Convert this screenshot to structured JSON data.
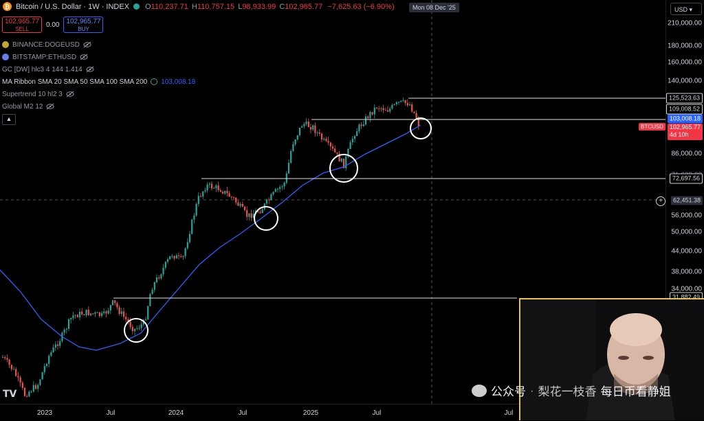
{
  "header": {
    "symbol_icon": "bitcoin-coin-icon",
    "title": "Bitcoin / U.S. Dollar · 1W · INDEX",
    "ohlc": [
      {
        "key": "O",
        "value": "110,237.71"
      },
      {
        "key": "H",
        "value": "110,757.15"
      },
      {
        "key": "L",
        "value": "98,933.99"
      },
      {
        "key": "C",
        "value": "102,965.77"
      }
    ],
    "change": "−7,625.63 (−6.90%)"
  },
  "trade": {
    "sell_price": "102,965.77",
    "sell_label": "SELL",
    "spread": "0.00",
    "buy_price": "102,965.77",
    "buy_label": "BUY"
  },
  "indicators": [
    {
      "label": "BINANCE:DOGEUSD",
      "icon": "dogecoin-icon",
      "value": ""
    },
    {
      "label": "BITSTAMP:ETHUSD",
      "icon": "ethereum-icon",
      "value": ""
    },
    {
      "label": "GC [DW] hlc3 4 144 1.414",
      "icon": "",
      "value": ""
    },
    {
      "label": "MA Ribbon SMA 20 SMA 50 SMA 100 SMA 200",
      "icon": "",
      "value": "103,008.18"
    },
    {
      "label": "Supertrend 10 hl2 3",
      "icon": "",
      "value": ""
    },
    {
      "label": "Global M2 12",
      "icon": "",
      "value": ""
    }
  ],
  "currency": "USD",
  "price_axis": [
    "210,000.00",
    "180,000.00",
    "160,000.00",
    "140,000.00",
    "86,000.00",
    "56,000.00",
    "50,000.00",
    "44,000.00",
    "38,000.00",
    "34,000.00"
  ],
  "price_tags": {
    "level_1": "125,523.63",
    "level_2": "109,008.52",
    "ma_value": "103,008.18",
    "current": "102,965.77",
    "countdown": "4d 10h",
    "level_3": "72,697.56",
    "crosshair": "62,451.38",
    "level_4": "31,882.49",
    "partial_upper": "71,693.00"
  },
  "symbol_tag": "BTCUSD",
  "time_axis": [
    "2023",
    "Jul",
    "2024",
    "Jul",
    "2025",
    "Jul",
    "Jul"
  ],
  "cursor_date": "Mon 08 Dec '25",
  "watermark": {
    "platform": "公众号",
    "sep": "·",
    "author": "梨花一枝香",
    "channel": "每日币看静姐"
  },
  "colors": {
    "bull": "#26a69a",
    "bear": "#ef5350",
    "ma": "#2962ff",
    "sell": "#f23645",
    "buy": "#2962ff"
  }
}
